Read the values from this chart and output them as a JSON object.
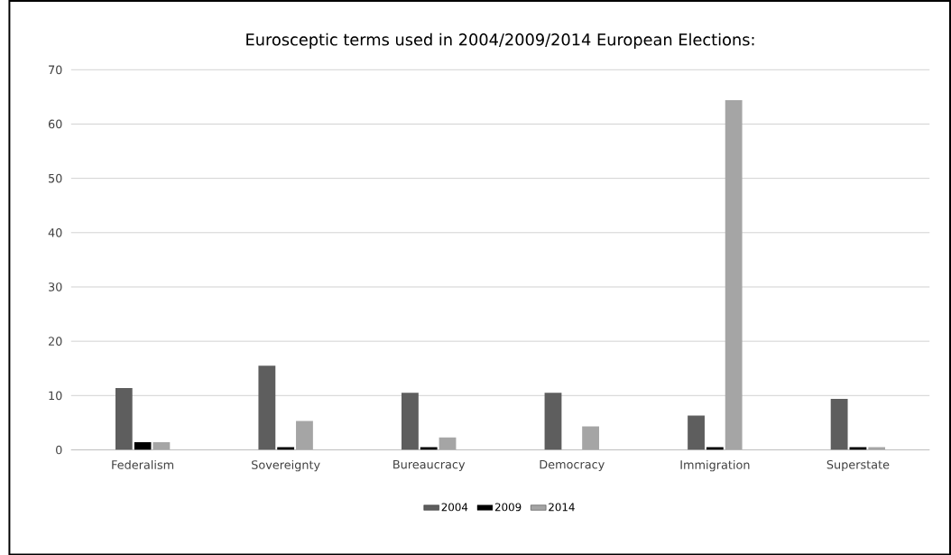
{
  "chart_data": {
    "type": "bar",
    "title": "Eurosceptic terms used in 2004/2009/2014 European Elections:",
    "categories": [
      "Federalism",
      "Sovereignty",
      "Bureaucracy",
      "Democracy",
      "Immigration",
      "Superstate"
    ],
    "series": [
      {
        "name": "2004",
        "color": "#5e5e5e",
        "values": [
          11.4,
          15.5,
          10.5,
          10.5,
          6.3,
          9.4
        ]
      },
      {
        "name": "2009",
        "color": "#000000",
        "values": [
          1.4,
          0.5,
          0.5,
          0,
          0.5,
          0.5
        ]
      },
      {
        "name": "2014",
        "color": "#a5a5a5",
        "values": [
          1.4,
          5.3,
          2.3,
          4.3,
          64.4,
          0.5
        ]
      }
    ],
    "ylim": [
      0,
      70
    ],
    "yticks": [
      0,
      10,
      20,
      30,
      40,
      50,
      60,
      70
    ],
    "grid": "y",
    "legend": "bottom"
  }
}
